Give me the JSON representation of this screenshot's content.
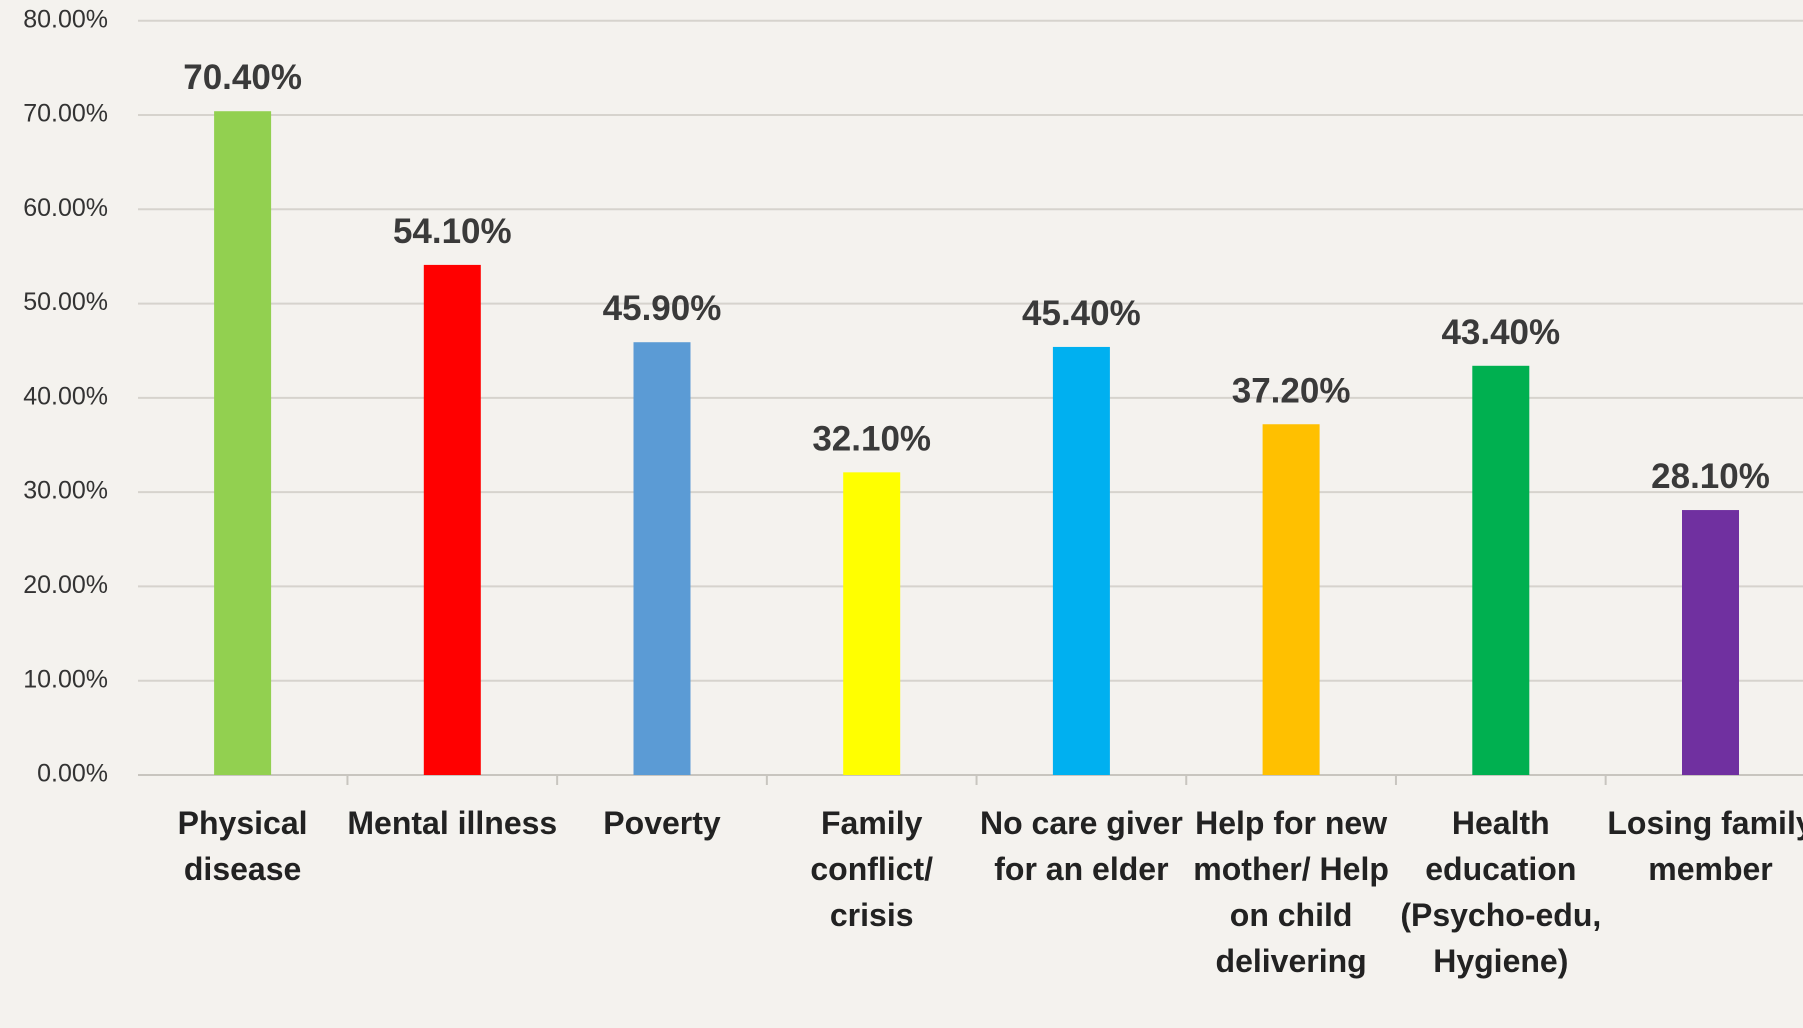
{
  "chart_data": {
    "type": "bar",
    "categories": [
      "Physical disease",
      "Mental illness",
      "Poverty",
      "Family conflict/ crisis",
      "No care giver for an elder",
      "Help for new mother/ Help on child delivering",
      "Health education (Psycho-edu, Hygiene)",
      "Losing family member"
    ],
    "values": [
      70.4,
      54.1,
      45.9,
      32.1,
      45.4,
      37.2,
      43.4,
      28.1
    ],
    "value_labels": [
      "70.40%",
      "54.10%",
      "45.90%",
      "32.10%",
      "45.40%",
      "37.20%",
      "43.40%",
      "28.10%"
    ],
    "colors": [
      "#92d050",
      "#ff0000",
      "#5b9bd5",
      "#ffff00",
      "#00b0f0",
      "#ffc000",
      "#00b050",
      "#7030a0"
    ],
    "ylim": [
      0,
      80
    ],
    "yticks": [
      {
        "value": 0,
        "label": "0.00%"
      },
      {
        "value": 10,
        "label": "10.00%"
      },
      {
        "value": 20,
        "label": "20.00%"
      },
      {
        "value": 30,
        "label": "30.00%"
      },
      {
        "value": 40,
        "label": "40.00%"
      },
      {
        "value": 50,
        "label": "50.00%"
      },
      {
        "value": 60,
        "label": "60.00%"
      },
      {
        "value": 70,
        "label": "70.00%"
      },
      {
        "value": 80,
        "label": "80.00%"
      }
    ],
    "grid": true
  }
}
